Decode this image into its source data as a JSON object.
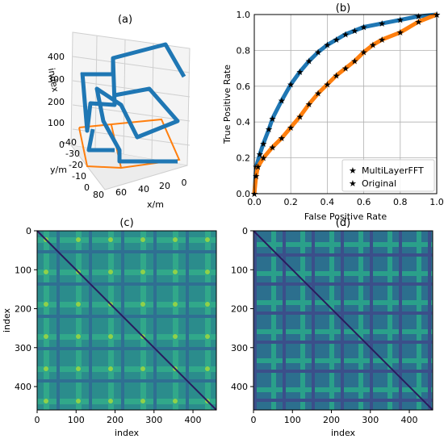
{
  "panels": {
    "a": {
      "label": "(a)",
      "xlabel": "x/m",
      "ylabel": "y/m",
      "zlabel": "index",
      "x_ticks": [
        "80",
        "60",
        "40",
        "20",
        "0"
      ],
      "y_ticks": [
        "-40",
        "-30",
        "-20",
        "-10",
        "0"
      ],
      "z_ticks": [
        "400",
        "300",
        "200",
        "100",
        "0"
      ],
      "colors": {
        "raised": "#1f77b4",
        "floor": "#ff7f0e"
      }
    },
    "b": {
      "label": "(b)"
    },
    "c": {
      "label": "(c)"
    },
    "d": {
      "label": "(d)"
    }
  },
  "chart_data": [
    {
      "panel": "b",
      "type": "line",
      "marker": "star",
      "xlabel": "False Positive Rate",
      "ylabel": "True Positive Rate",
      "xlim": [
        0,
        1
      ],
      "ylim": [
        0,
        1
      ],
      "x_ticks": [
        "0.0",
        "0.2",
        "0.4",
        "0.6",
        "0.8",
        "1.0"
      ],
      "y_ticks": [
        "0.0",
        "0.2",
        "0.4",
        "0.6",
        "0.8",
        "1.0"
      ],
      "grid": true,
      "legend_position": "bottom-right",
      "series": [
        {
          "name": "MultiLayerFFT",
          "color": "#1f77b4",
          "x": [
            0,
            0.01,
            0.03,
            0.05,
            0.08,
            0.1,
            0.15,
            0.2,
            0.25,
            0.3,
            0.35,
            0.4,
            0.45,
            0.5,
            0.55,
            0.6,
            0.7,
            0.8,
            0.9,
            1.0
          ],
          "y": [
            0,
            0.15,
            0.22,
            0.28,
            0.36,
            0.42,
            0.52,
            0.61,
            0.68,
            0.74,
            0.79,
            0.83,
            0.86,
            0.89,
            0.91,
            0.93,
            0.95,
            0.97,
            0.99,
            1.0
          ]
        },
        {
          "name": "Original",
          "color": "#ff7f0e",
          "x": [
            0,
            0.01,
            0.02,
            0.05,
            0.1,
            0.15,
            0.2,
            0.25,
            0.3,
            0.35,
            0.4,
            0.45,
            0.5,
            0.55,
            0.6,
            0.65,
            0.7,
            0.8,
            0.9,
            1.0
          ],
          "y": [
            0,
            0.1,
            0.15,
            0.2,
            0.26,
            0.31,
            0.37,
            0.43,
            0.5,
            0.56,
            0.61,
            0.66,
            0.7,
            0.74,
            0.79,
            0.83,
            0.86,
            0.9,
            0.96,
            1.0
          ]
        }
      ]
    },
    {
      "panel": "c",
      "type": "heatmap",
      "xlabel": "index",
      "ylabel": "index",
      "xlim": [
        0,
        460
      ],
      "ylim": [
        460,
        0
      ],
      "x_ticks": [
        "0",
        "100",
        "200",
        "300",
        "400"
      ],
      "y_ticks": [
        "0",
        "100",
        "200",
        "300",
        "400"
      ],
      "colormap": "viridis"
    },
    {
      "panel": "d",
      "type": "heatmap",
      "xlabel": "index",
      "ylabel": "",
      "xlim": [
        0,
        460
      ],
      "ylim": [
        460,
        0
      ],
      "x_ticks": [
        "0",
        "100",
        "200",
        "300",
        "400"
      ],
      "y_ticks": [
        "0",
        "100",
        "200",
        "300",
        "400"
      ],
      "colormap": "viridis"
    }
  ]
}
